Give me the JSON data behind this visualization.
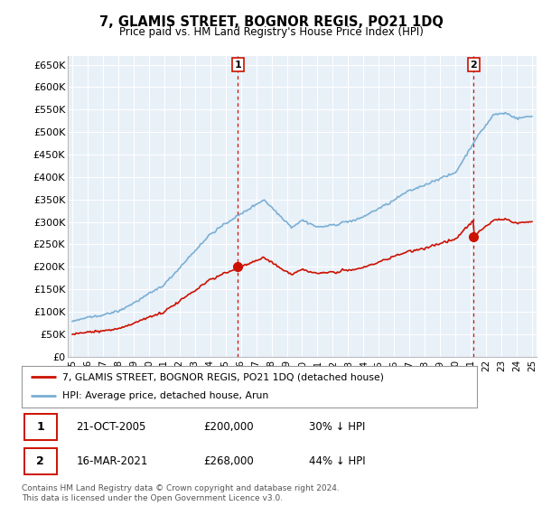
{
  "title": "7, GLAMIS STREET, BOGNOR REGIS, PO21 1DQ",
  "subtitle": "Price paid vs. HM Land Registry's House Price Index (HPI)",
  "hpi_color": "#7bafd4",
  "property_color": "#cc1100",
  "marker_color": "#cc1100",
  "dashed_color": "#cc1100",
  "background_color": "#ffffff",
  "plot_bg_color": "#e8f0f8",
  "grid_color": "#ffffff",
  "ylim": [
    0,
    670000
  ],
  "yticks": [
    0,
    50000,
    100000,
    150000,
    200000,
    250000,
    300000,
    350000,
    400000,
    450000,
    500000,
    550000,
    600000,
    650000
  ],
  "ytick_labels": [
    "£0",
    "£50K",
    "£100K",
    "£150K",
    "£200K",
    "£250K",
    "£300K",
    "£350K",
    "£400K",
    "£450K",
    "£500K",
    "£550K",
    "£600K",
    "£650K"
  ],
  "legend_property": "7, GLAMIS STREET, BOGNOR REGIS, PO21 1DQ (detached house)",
  "legend_hpi": "HPI: Average price, detached house, Arun",
  "sale1_date": "21-OCT-2005",
  "sale1_price": 200000,
  "sale1_pct": "30% ↓ HPI",
  "sale2_date": "16-MAR-2021",
  "sale2_price": 268000,
  "sale2_pct": "44% ↓ HPI",
  "footnote": "Contains HM Land Registry data © Crown copyright and database right 2024.\nThis data is licensed under the Open Government Licence v3.0.",
  "sale1_year": 2005.8,
  "sale2_year": 2021.2,
  "xstart": 1995,
  "xend": 2025
}
